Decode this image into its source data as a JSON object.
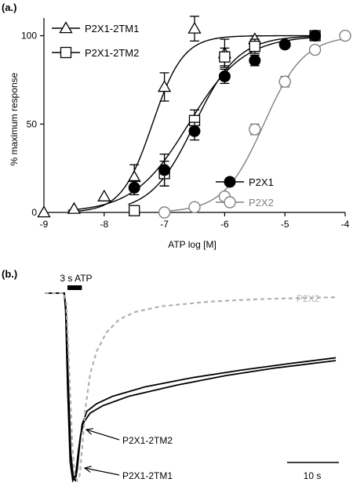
{
  "chart_data": [
    {
      "panel_label": "(a.)",
      "type": "scatter",
      "x_scale": "log10",
      "xlabel": "ATP log [M]",
      "ylabel": "% maximum response",
      "xlim": [
        -9,
        -4
      ],
      "ylim": [
        0,
        110
      ],
      "x_ticks": [
        "-9",
        "-8",
        "-7",
        "-6",
        "-5",
        "-4"
      ],
      "x_tick_values": [
        -9,
        -8,
        -7,
        -6,
        -5,
        -4
      ],
      "y_ticks": [
        "0",
        "50",
        "100"
      ],
      "y_tick_values": [
        0,
        50,
        100
      ],
      "grid": false,
      "legend_placement": [
        "top-left",
        "bottom-right"
      ],
      "series": [
        {
          "name": "P2X1-2TM1",
          "marker": "open-triangle",
          "color": "#000000",
          "fit": {
            "ec50_log": -7.2,
            "hill": 1.7,
            "bottom": 0,
            "top": 100
          },
          "points": [
            {
              "x": -9.0,
              "y": 0,
              "err": 0
            },
            {
              "x": -8.5,
              "y": 2,
              "err": 0
            },
            {
              "x": -8.0,
              "y": 9,
              "err": 0
            },
            {
              "x": -7.5,
              "y": 20,
              "err": 7
            },
            {
              "x": -7.0,
              "y": 71,
              "err": 8
            },
            {
              "x": -6.5,
              "y": 104,
              "err": 7
            },
            {
              "x": -6.0,
              "y": 90,
              "err": 8
            },
            {
              "x": -5.5,
              "y": 98,
              "err": 2
            }
          ]
        },
        {
          "name": "P2X1-2TM2",
          "marker": "open-square",
          "color": "#000000",
          "fit": {
            "ec50_log": -6.5,
            "hill": 1.2,
            "bottom": 0,
            "top": 100
          },
          "points": [
            {
              "x": -7.5,
              "y": 1,
              "err": 0
            },
            {
              "x": -7.0,
              "y": 22,
              "err": 7
            },
            {
              "x": -6.5,
              "y": 52,
              "err": 6
            },
            {
              "x": -6.0,
              "y": 88,
              "err": 5
            },
            {
              "x": -5.5,
              "y": 94,
              "err": 4
            },
            {
              "x": -4.5,
              "y": 100,
              "err": 0
            }
          ]
        },
        {
          "name": "P2X1",
          "marker": "filled-circle",
          "color": "#000000",
          "fit": {
            "ec50_log": -6.6,
            "hill": 0.95,
            "bottom": 0,
            "top": 100
          },
          "points": [
            {
              "x": -7.5,
              "y": 14,
              "err": 4
            },
            {
              "x": -7.0,
              "y": 24,
              "err": 9
            },
            {
              "x": -6.5,
              "y": 46,
              "err": 5
            },
            {
              "x": -6.0,
              "y": 77,
              "err": 4
            },
            {
              "x": -5.5,
              "y": 86,
              "err": 3
            },
            {
              "x": -5.0,
              "y": 95,
              "err": 2
            },
            {
              "x": -4.5,
              "y": 100,
              "err": 0
            }
          ]
        },
        {
          "name": "P2X2",
          "marker": "open-circle",
          "color": "#808080",
          "fit": {
            "ec50_log": -5.35,
            "hill": 1.3,
            "bottom": 0,
            "top": 100
          },
          "points": [
            {
              "x": -7.0,
              "y": 0,
              "err": 0
            },
            {
              "x": -6.5,
              "y": 3,
              "err": 0
            },
            {
              "x": -6.0,
              "y": 9,
              "err": 0
            },
            {
              "x": -5.5,
              "y": 47,
              "err": 3
            },
            {
              "x": -5.0,
              "y": 74,
              "err": 3
            },
            {
              "x": -4.5,
              "y": 92,
              "err": 1
            },
            {
              "x": -4.0,
              "y": 100,
              "err": 0
            }
          ]
        }
      ]
    },
    {
      "panel_label": "(b.)",
      "type": "line",
      "stimulus_label": "3 s ATP",
      "stimulus_duration_s": 3,
      "scale_bar_label": "10 s",
      "scale_bar_s": 10,
      "xlim": [
        -6,
        84
      ],
      "ylim": [
        -1.02,
        0.03
      ],
      "series": [
        {
          "name": "P2X2",
          "style": "dashed",
          "color": "#b0b0b0",
          "labeled": "top-right",
          "points": [
            [
              -6,
              0
            ],
            [
              0,
              0
            ],
            [
              0.6,
              -0.05
            ],
            [
              1.5,
              -0.4
            ],
            [
              2.5,
              -0.82
            ],
            [
              3.2,
              -0.97
            ],
            [
              4,
              -1.0
            ],
            [
              4.8,
              -0.97
            ],
            [
              5.5,
              -0.83
            ],
            [
              6.5,
              -0.62
            ],
            [
              8,
              -0.43
            ],
            [
              10,
              -0.31
            ],
            [
              13,
              -0.21
            ],
            [
              17,
              -0.14
            ],
            [
              22,
              -0.1
            ],
            [
              30,
              -0.07
            ],
            [
              45,
              -0.045
            ],
            [
              60,
              -0.032
            ],
            [
              75,
              -0.025
            ],
            [
              84,
              -0.022
            ]
          ]
        },
        {
          "name": "P2X1-2TM2",
          "style": "solid",
          "color": "#000000",
          "labeled": "arrow",
          "points": [
            [
              -6,
              0
            ],
            [
              0,
              0
            ],
            [
              0.5,
              -0.08
            ],
            [
              1.2,
              -0.45
            ],
            [
              2,
              -0.85
            ],
            [
              2.8,
              -0.99
            ],
            [
              3.4,
              -1.0
            ],
            [
              4,
              -0.94
            ],
            [
              4.8,
              -0.8
            ],
            [
              5.5,
              -0.7
            ],
            [
              7,
              -0.63
            ],
            [
              10,
              -0.59
            ],
            [
              15,
              -0.55
            ],
            [
              25,
              -0.5
            ],
            [
              40,
              -0.45
            ],
            [
              55,
              -0.41
            ],
            [
              70,
              -0.375
            ],
            [
              84,
              -0.345
            ]
          ]
        },
        {
          "name": "P2X1-2TM1",
          "style": "solid",
          "color": "#000000",
          "labeled": "arrow",
          "points": [
            [
              -6,
              0
            ],
            [
              0,
              0
            ],
            [
              0.4,
              -0.1
            ],
            [
              1,
              -0.5
            ],
            [
              1.8,
              -0.9
            ],
            [
              2.6,
              -1.0
            ],
            [
              3.5,
              -0.97
            ],
            [
              4.3,
              -0.85
            ],
            [
              5,
              -0.76
            ],
            [
              6,
              -0.69
            ],
            [
              8,
              -0.64
            ],
            [
              12,
              -0.6
            ],
            [
              20,
              -0.55
            ],
            [
              35,
              -0.49
            ],
            [
              50,
              -0.44
            ],
            [
              65,
              -0.4
            ],
            [
              84,
              -0.36
            ]
          ]
        }
      ]
    }
  ]
}
